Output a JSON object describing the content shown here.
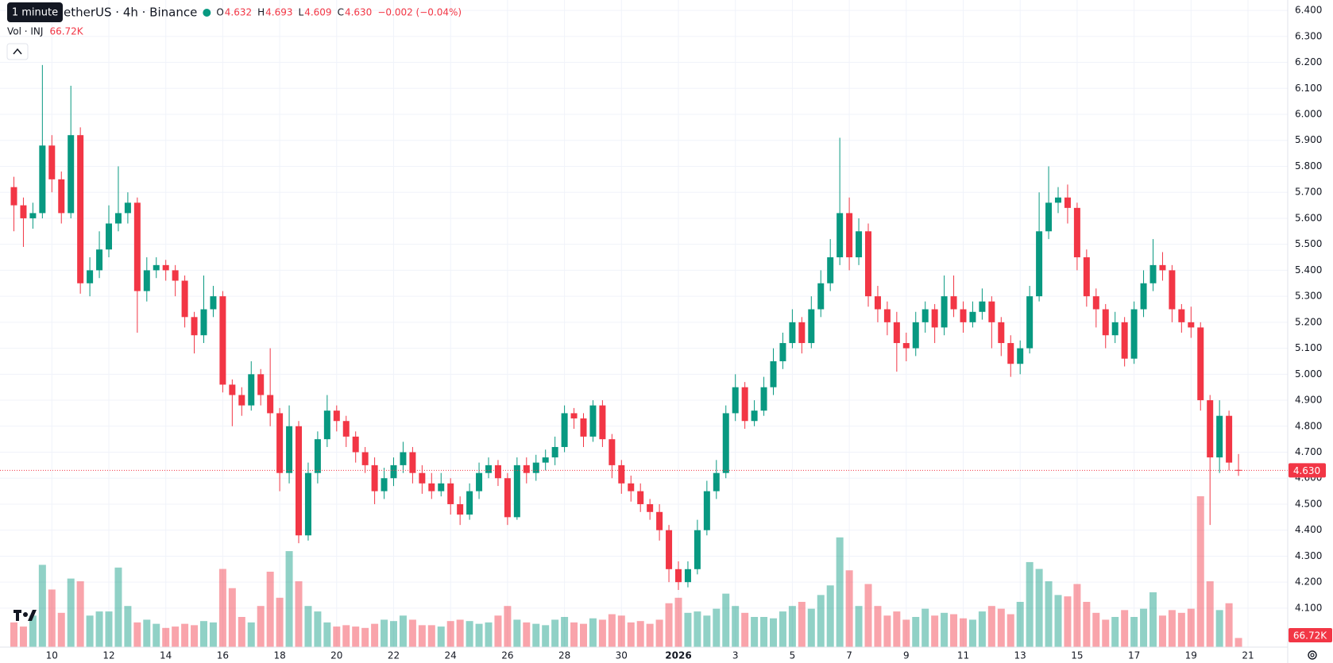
{
  "chart_data": {
    "type": "candlestick",
    "legend": {
      "symbol": "etherUS · 4h · Binance",
      "labels": [
        "O",
        "H",
        "L",
        "C"
      ],
      "values": [
        "4.632",
        "4.693",
        "4.609",
        "4.630"
      ],
      "change": "−0.002 (−0.04%)"
    },
    "tooltip": "1 minute",
    "volume_title": "Vol · INJ",
    "volume_label": "66.72K",
    "colors": {
      "up": "#089981",
      "down": "#f23645",
      "up_volume": "rgba(8,153,129,0.45)",
      "down_volume": "rgba(242,54,69,0.45)"
    },
    "grid": true,
    "open": [
      5.72,
      5.65,
      5.6,
      5.62,
      5.88,
      5.75,
      5.62,
      5.92,
      5.35,
      5.4,
      5.48,
      5.58,
      5.62,
      5.66,
      5.32,
      5.4,
      5.42,
      5.4,
      5.36,
      5.22,
      5.15,
      5.25,
      5.3,
      4.96,
      4.92,
      4.88,
      5.0,
      4.92,
      4.85,
      4.62,
      4.8,
      4.38,
      4.62,
      4.75,
      4.86,
      4.82,
      4.76,
      4.7,
      4.65,
      4.55,
      4.6,
      4.65,
      4.7,
      4.62,
      4.58,
      4.55,
      4.58,
      4.5,
      4.46,
      4.55,
      4.62,
      4.65,
      4.6,
      4.45,
      4.65,
      4.62,
      4.66,
      4.68,
      4.72,
      4.85,
      4.83,
      4.76,
      4.88,
      4.75,
      4.65,
      4.58,
      4.55,
      4.5,
      4.47,
      4.4,
      4.25,
      4.2,
      4.25,
      4.4,
      4.55,
      4.62,
      4.85,
      4.95,
      4.82,
      4.86,
      4.95,
      5.05,
      5.12,
      5.2,
      5.12,
      5.25,
      5.35,
      5.45,
      5.62,
      5.45,
      5.55,
      5.3,
      5.25,
      5.2,
      5.12,
      5.1,
      5.2,
      5.25,
      5.18,
      5.3,
      5.25,
      5.2,
      5.24,
      5.28,
      5.2,
      5.12,
      5.04,
      5.1,
      5.3,
      5.55,
      5.66,
      5.68,
      5.64,
      5.45,
      5.3,
      5.25,
      5.15,
      5.2,
      5.06,
      5.25,
      5.35,
      5.42,
      5.4,
      5.25,
      5.2,
      5.18,
      4.9,
      4.68,
      4.84,
      4.632
    ],
    "high": [
      5.76,
      5.68,
      5.66,
      6.19,
      5.92,
      5.78,
      6.11,
      5.95,
      5.45,
      5.55,
      5.65,
      5.8,
      5.7,
      5.68,
      5.45,
      5.45,
      5.44,
      5.42,
      5.38,
      5.24,
      5.38,
      5.34,
      5.32,
      4.98,
      4.95,
      5.05,
      5.02,
      5.1,
      4.87,
      4.88,
      4.82,
      4.66,
      4.78,
      4.92,
      4.88,
      4.84,
      4.78,
      4.72,
      4.68,
      4.64,
      4.68,
      4.74,
      4.72,
      4.65,
      4.62,
      4.62,
      4.6,
      4.53,
      4.58,
      4.66,
      4.68,
      4.67,
      4.62,
      4.68,
      4.68,
      4.69,
      4.71,
      4.76,
      4.88,
      4.87,
      4.85,
      4.9,
      4.9,
      4.77,
      4.67,
      4.61,
      4.58,
      4.52,
      4.5,
      4.42,
      4.28,
      4.28,
      4.44,
      4.59,
      4.67,
      4.88,
      5.0,
      4.97,
      4.9,
      4.99,
      5.1,
      5.16,
      5.25,
      5.22,
      5.3,
      5.4,
      5.52,
      5.91,
      5.68,
      5.6,
      5.58,
      5.34,
      5.28,
      5.24,
      5.16,
      5.24,
      5.28,
      5.27,
      5.38,
      5.38,
      5.28,
      5.28,
      5.33,
      5.3,
      5.22,
      5.15,
      5.13,
      5.34,
      5.7,
      5.8,
      5.72,
      5.73,
      5.66,
      5.48,
      5.33,
      5.27,
      5.24,
      5.22,
      5.28,
      5.4,
      5.52,
      5.47,
      5.42,
      5.27,
      5.26,
      5.2,
      4.92,
      4.9,
      4.86,
      4.693
    ],
    "low": [
      5.55,
      5.49,
      5.56,
      5.6,
      5.7,
      5.58,
      5.6,
      5.31,
      5.3,
      5.37,
      5.45,
      5.55,
      5.58,
      5.16,
      5.28,
      5.37,
      5.36,
      5.3,
      5.18,
      5.08,
      5.12,
      5.22,
      4.93,
      4.8,
      4.84,
      4.86,
      4.88,
      4.8,
      4.55,
      4.58,
      4.35,
      4.36,
      4.58,
      4.72,
      4.78,
      4.72,
      4.66,
      4.62,
      4.5,
      4.52,
      4.57,
      4.62,
      4.58,
      4.54,
      4.52,
      4.53,
      4.46,
      4.42,
      4.44,
      4.52,
      4.6,
      4.57,
      4.42,
      4.44,
      4.58,
      4.59,
      4.63,
      4.65,
      4.7,
      4.79,
      4.72,
      4.74,
      4.72,
      4.6,
      4.54,
      4.51,
      4.47,
      4.44,
      4.36,
      4.2,
      4.17,
      4.18,
      4.23,
      4.38,
      4.52,
      4.6,
      4.82,
      4.79,
      4.8,
      4.84,
      4.92,
      5.02,
      5.1,
      5.08,
      5.1,
      5.22,
      5.32,
      5.42,
      5.4,
      5.42,
      5.26,
      5.2,
      5.15,
      5.01,
      5.05,
      5.07,
      5.16,
      5.12,
      5.15,
      5.22,
      5.16,
      5.18,
      5.21,
      5.1,
      5.07,
      4.99,
      5.0,
      5.08,
      5.28,
      5.52,
      5.62,
      5.58,
      5.4,
      5.26,
      5.18,
      5.1,
      5.12,
      5.03,
      5.04,
      5.22,
      5.32,
      5.36,
      5.2,
      5.16,
      5.14,
      4.86,
      4.42,
      4.62,
      4.63,
      4.609
    ],
    "close": [
      5.65,
      5.6,
      5.62,
      5.88,
      5.75,
      5.62,
      5.92,
      5.35,
      5.4,
      5.48,
      5.58,
      5.62,
      5.66,
      5.32,
      5.4,
      5.42,
      5.4,
      5.36,
      5.22,
      5.15,
      5.25,
      5.3,
      4.96,
      4.92,
      4.88,
      5.0,
      4.92,
      4.85,
      4.62,
      4.8,
      4.38,
      4.62,
      4.75,
      4.86,
      4.82,
      4.76,
      4.7,
      4.65,
      4.55,
      4.6,
      4.65,
      4.7,
      4.62,
      4.58,
      4.55,
      4.58,
      4.5,
      4.46,
      4.55,
      4.62,
      4.65,
      4.6,
      4.45,
      4.65,
      4.62,
      4.66,
      4.68,
      4.72,
      4.85,
      4.83,
      4.76,
      4.88,
      4.75,
      4.65,
      4.58,
      4.55,
      4.5,
      4.47,
      4.4,
      4.25,
      4.2,
      4.25,
      4.4,
      4.55,
      4.62,
      4.85,
      4.95,
      4.82,
      4.86,
      4.95,
      5.05,
      5.12,
      5.2,
      5.12,
      5.25,
      5.35,
      5.45,
      5.62,
      5.45,
      5.55,
      5.3,
      5.25,
      5.2,
      5.12,
      5.1,
      5.2,
      5.25,
      5.18,
      5.3,
      5.25,
      5.2,
      5.24,
      5.28,
      5.2,
      5.12,
      5.04,
      5.1,
      5.3,
      5.55,
      5.66,
      5.68,
      5.64,
      5.45,
      5.3,
      5.25,
      5.15,
      5.2,
      5.06,
      5.25,
      5.35,
      5.42,
      5.4,
      5.25,
      5.2,
      5.18,
      4.9,
      4.68,
      4.84,
      4.66,
      4.63
    ],
    "volume": [
      180,
      150,
      230,
      600,
      420,
      250,
      500,
      480,
      230,
      260,
      260,
      580,
      300,
      180,
      200,
      170,
      140,
      150,
      170,
      160,
      190,
      180,
      570,
      430,
      220,
      180,
      300,
      550,
      360,
      700,
      480,
      300,
      260,
      180,
      150,
      160,
      150,
      140,
      170,
      200,
      190,
      230,
      200,
      160,
      160,
      150,
      190,
      200,
      190,
      170,
      180,
      230,
      300,
      200,
      180,
      170,
      160,
      200,
      220,
      180,
      170,
      210,
      200,
      240,
      230,
      180,
      190,
      170,
      200,
      320,
      360,
      250,
      260,
      230,
      280,
      390,
      300,
      250,
      220,
      220,
      210,
      260,
      300,
      330,
      280,
      380,
      450,
      800,
      560,
      300,
      460,
      300,
      230,
      260,
      200,
      220,
      280,
      230,
      250,
      240,
      210,
      200,
      260,
      300,
      280,
      240,
      330,
      620,
      570,
      480,
      380,
      370,
      460,
      330,
      250,
      200,
      220,
      270,
      220,
      280,
      400,
      230,
      270,
      250,
      280,
      1100,
      480,
      270,
      320,
      66.72
    ],
    "ylim": [
      3.95,
      6.44
    ],
    "yticks": [
      {
        "value": 4.1,
        "label": "4.100"
      },
      {
        "value": 4.2,
        "label": "4.200"
      },
      {
        "value": 4.3,
        "label": "4.300"
      },
      {
        "value": 4.4,
        "label": "4.400"
      },
      {
        "value": 4.5,
        "label": "4.500"
      },
      {
        "value": 4.6,
        "label": "4.600"
      },
      {
        "value": 4.7,
        "label": "4.700"
      },
      {
        "value": 4.8,
        "label": "4.800"
      },
      {
        "value": 4.9,
        "label": "4.900"
      },
      {
        "value": 5.0,
        "label": "5.000"
      },
      {
        "value": 5.1,
        "label": "5.100"
      },
      {
        "value": 5.2,
        "label": "5.200"
      },
      {
        "value": 5.3,
        "label": "5.300"
      },
      {
        "value": 5.4,
        "label": "5.400"
      },
      {
        "value": 5.5,
        "label": "5.500"
      },
      {
        "value": 5.6,
        "label": "5.600"
      },
      {
        "value": 5.7,
        "label": "5.700"
      },
      {
        "value": 5.8,
        "label": "5.800"
      },
      {
        "value": 5.9,
        "label": "5.900"
      },
      {
        "value": 6.0,
        "label": "6.000"
      },
      {
        "value": 6.1,
        "label": "6.100"
      },
      {
        "value": 6.2,
        "label": "6.200"
      },
      {
        "value": 6.3,
        "label": "6.300"
      },
      {
        "value": 6.4,
        "label": "6.400"
      }
    ],
    "xticks": [
      {
        "value": 4,
        "label": "10"
      },
      {
        "value": 10,
        "label": "12"
      },
      {
        "value": 16,
        "label": "14"
      },
      {
        "value": 22,
        "label": "16"
      },
      {
        "value": 28,
        "label": "18"
      },
      {
        "value": 34,
        "label": "20"
      },
      {
        "value": 40,
        "label": "22"
      },
      {
        "value": 46,
        "label": "24"
      },
      {
        "value": 52,
        "label": "26"
      },
      {
        "value": 58,
        "label": "28"
      },
      {
        "value": 64,
        "label": "30"
      },
      {
        "value": 70,
        "label": "2026",
        "bold": true
      },
      {
        "value": 76,
        "label": "3"
      },
      {
        "value": 82,
        "label": "5"
      },
      {
        "value": 88,
        "label": "7"
      },
      {
        "value": 94,
        "label": "9"
      },
      {
        "value": 100,
        "label": "11"
      },
      {
        "value": 106,
        "label": "13"
      },
      {
        "value": 112,
        "label": "15"
      },
      {
        "value": 118,
        "label": "17"
      },
      {
        "value": 124,
        "label": "19"
      },
      {
        "value": 130,
        "label": "21"
      }
    ]
  }
}
